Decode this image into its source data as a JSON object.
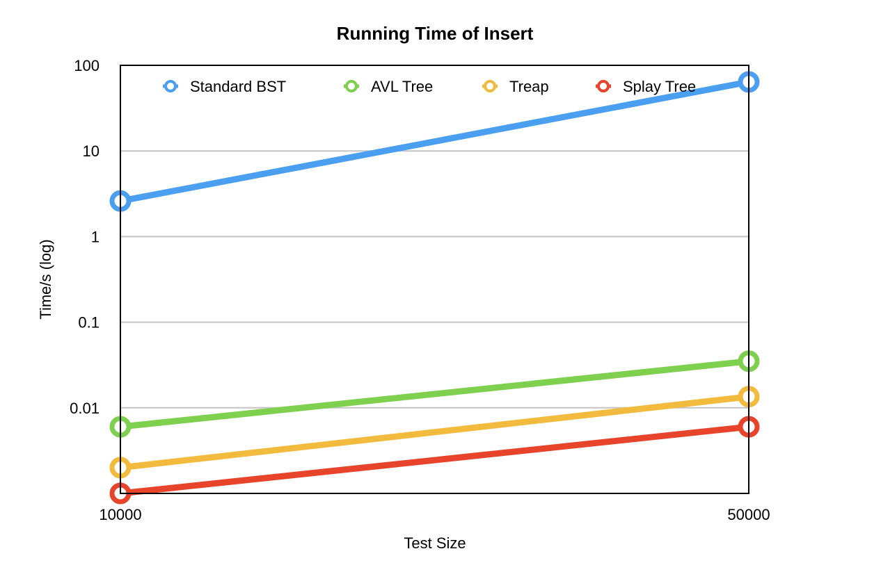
{
  "chart_data": {
    "type": "line",
    "title": "Running Time of Insert",
    "xlabel": "Test Size",
    "ylabel": "Time/s (log)",
    "x": [
      10000,
      50000
    ],
    "x_tick_labels": [
      "10000",
      "50000"
    ],
    "y_scale": "log",
    "ylim": [
      0.001,
      100
    ],
    "y_ticks": [
      100,
      10,
      1,
      0.1,
      0.01
    ],
    "y_tick_labels": [
      "100",
      "10",
      "1",
      "0.1",
      "0.01"
    ],
    "grid": true,
    "legend_position": "top",
    "series": [
      {
        "name": "Standard BST",
        "color": "#4a9ff0",
        "values": [
          2.6,
          64
        ]
      },
      {
        "name": "AVL Tree",
        "color": "#7ed04e",
        "values": [
          0.006,
          0.035
        ]
      },
      {
        "name": "Treap",
        "color": "#f2bb3e",
        "values": [
          0.002,
          0.0135
        ]
      },
      {
        "name": "Splay Tree",
        "color": "#e8432b",
        "values": [
          0.001,
          0.006
        ]
      }
    ]
  }
}
